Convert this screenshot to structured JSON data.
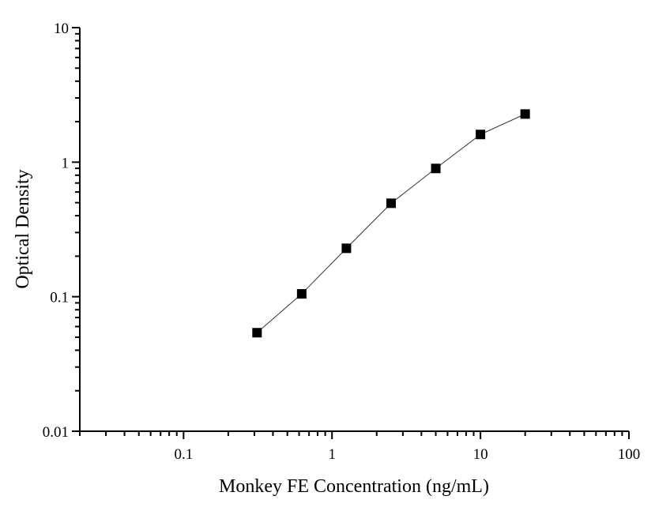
{
  "chart_data": {
    "type": "line",
    "title": "",
    "xlabel": "Monkey FE Concentration (ng/mL)",
    "ylabel": "Optical Density",
    "xscale": "log",
    "yscale": "log",
    "xlim": [
      0.02,
      100
    ],
    "ylim": [
      0.01,
      10
    ],
    "x_ticks": [
      0.1,
      1,
      10,
      100
    ],
    "x_tick_labels": [
      "0.1",
      "1",
      "10",
      "100"
    ],
    "y_ticks": [
      0.01,
      0.1,
      1,
      10
    ],
    "y_tick_labels": [
      "0.01",
      "0.1",
      "1",
      "10"
    ],
    "grid": false,
    "marker": "square",
    "series": [
      {
        "x": [
          0.3125,
          0.625,
          1.25,
          2.5,
          5,
          10,
          20
        ],
        "y": [
          0.054,
          0.105,
          0.229,
          0.495,
          0.898,
          1.607,
          2.28
        ],
        "color": "#000000"
      }
    ]
  }
}
